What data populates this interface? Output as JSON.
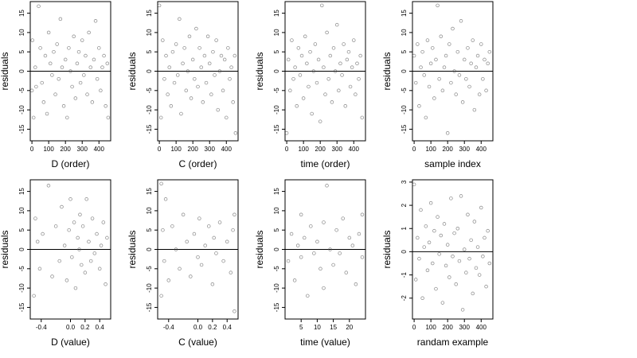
{
  "chart_data": [
    {
      "type": "scatter",
      "xlabel": "D (order)",
      "ylabel": "residuals",
      "xlim": [
        -10,
        470
      ],
      "ylim": [
        -18,
        18
      ],
      "xticks": [
        0,
        100,
        200,
        300,
        400
      ],
      "yticks": [
        -15,
        -10,
        -5,
        0,
        5,
        10,
        15
      ],
      "ref_line_y": 0,
      "points": [
        [
          0,
          -5
        ],
        [
          3,
          8
        ],
        [
          10,
          -12
        ],
        [
          20,
          1
        ],
        [
          25,
          -4
        ],
        [
          40,
          16.8
        ],
        [
          50,
          6
        ],
        [
          60,
          -3
        ],
        [
          70,
          -8
        ],
        [
          80,
          4
        ],
        [
          90,
          -11
        ],
        [
          100,
          10
        ],
        [
          110,
          2
        ],
        [
          120,
          -1
        ],
        [
          130,
          5
        ],
        [
          140,
          -6
        ],
        [
          150,
          7
        ],
        [
          160,
          -2
        ],
        [
          170,
          13.5
        ],
        [
          180,
          1
        ],
        [
          190,
          -9
        ],
        [
          200,
          3
        ],
        [
          210,
          -12
        ],
        [
          220,
          6
        ],
        [
          230,
          0
        ],
        [
          240,
          -4
        ],
        [
          250,
          9
        ],
        [
          260,
          -7
        ],
        [
          270,
          2
        ],
        [
          280,
          5
        ],
        [
          290,
          -3
        ],
        [
          300,
          8
        ],
        [
          310,
          -1
        ],
        [
          320,
          4
        ],
        [
          330,
          -6
        ],
        [
          340,
          10
        ],
        [
          350,
          1
        ],
        [
          360,
          -8
        ],
        [
          370,
          3
        ],
        [
          380,
          13
        ],
        [
          390,
          -2
        ],
        [
          400,
          6
        ],
        [
          410,
          -5
        ],
        [
          420,
          1
        ],
        [
          430,
          4
        ],
        [
          440,
          -9
        ],
        [
          450,
          2
        ],
        [
          455,
          -12
        ]
      ]
    },
    {
      "type": "scatter",
      "xlabel": "C (order)",
      "ylabel": "residuals",
      "xlim": [
        -10,
        470
      ],
      "ylim": [
        -18,
        18
      ],
      "xticks": [
        0,
        100,
        200,
        300,
        400
      ],
      "yticks": [
        -15,
        -10,
        -5,
        0,
        5,
        10,
        15
      ],
      "ref_line_y": 0,
      "points": [
        [
          0,
          17
        ],
        [
          10,
          -12
        ],
        [
          20,
          8
        ],
        [
          30,
          -2
        ],
        [
          40,
          4
        ],
        [
          50,
          -6
        ],
        [
          60,
          1
        ],
        [
          70,
          -9
        ],
        [
          80,
          5
        ],
        [
          90,
          -3
        ],
        [
          100,
          7
        ],
        [
          110,
          -1
        ],
        [
          120,
          13.5
        ],
        [
          130,
          -11
        ],
        [
          140,
          2
        ],
        [
          150,
          6
        ],
        [
          160,
          -5
        ],
        [
          170,
          0
        ],
        [
          180,
          9
        ],
        [
          190,
          -7
        ],
        [
          200,
          3
        ],
        [
          210,
          -2
        ],
        [
          220,
          11
        ],
        [
          230,
          -4
        ],
        [
          240,
          6
        ],
        [
          250,
          1
        ],
        [
          260,
          -8
        ],
        [
          270,
          4
        ],
        [
          280,
          -3
        ],
        [
          290,
          9
        ],
        [
          300,
          2
        ],
        [
          310,
          -6
        ],
        [
          320,
          5
        ],
        [
          330,
          -1
        ],
        [
          340,
          8
        ],
        [
          350,
          -10
        ],
        [
          360,
          0
        ],
        [
          370,
          4
        ],
        [
          380,
          -5
        ],
        [
          390,
          3
        ],
        [
          400,
          -12
        ],
        [
          410,
          6
        ],
        [
          420,
          -2
        ],
        [
          430,
          1
        ],
        [
          440,
          -8
        ],
        [
          450,
          4
        ],
        [
          455,
          -16
        ]
      ]
    },
    {
      "type": "scatter",
      "xlabel": "time (order)",
      "ylabel": "residuals",
      "xlim": [
        -10,
        470
      ],
      "ylim": [
        -18,
        18
      ],
      "xticks": [
        0,
        100,
        200,
        300,
        400
      ],
      "yticks": [
        -15,
        -10,
        -5,
        0,
        5,
        10,
        15
      ],
      "ref_line_y": 0,
      "points": [
        [
          0,
          -16
        ],
        [
          10,
          3
        ],
        [
          20,
          -5
        ],
        [
          30,
          8
        ],
        [
          40,
          -2
        ],
        [
          50,
          1
        ],
        [
          60,
          -9
        ],
        [
          70,
          6
        ],
        [
          80,
          -1
        ],
        [
          90,
          4
        ],
        [
          100,
          -7
        ],
        [
          110,
          9
        ],
        [
          120,
          2
        ],
        [
          130,
          -4
        ],
        [
          140,
          5
        ],
        [
          150,
          -11
        ],
        [
          160,
          0
        ],
        [
          170,
          7
        ],
        [
          180,
          -3
        ],
        [
          190,
          3
        ],
        [
          200,
          -13
        ],
        [
          210,
          17
        ],
        [
          220,
          1
        ],
        [
          230,
          -6
        ],
        [
          240,
          10
        ],
        [
          250,
          -2
        ],
        [
          260,
          4
        ],
        [
          270,
          -8
        ],
        [
          280,
          6
        ],
        [
          290,
          0
        ],
        [
          300,
          12
        ],
        [
          310,
          -5
        ],
        [
          320,
          2
        ],
        [
          330,
          -1
        ],
        [
          340,
          7
        ],
        [
          350,
          -9
        ],
        [
          360,
          3
        ],
        [
          370,
          5
        ],
        [
          380,
          -4
        ],
        [
          390,
          1
        ],
        [
          400,
          8
        ],
        [
          410,
          -6
        ],
        [
          420,
          2
        ],
        [
          430,
          -2
        ],
        [
          440,
          4
        ],
        [
          450,
          -12
        ]
      ]
    },
    {
      "type": "scatter",
      "xlabel": "sample index",
      "ylabel": "residuals",
      "xlim": [
        -10,
        470
      ],
      "ylim": [
        -18,
        18
      ],
      "xticks": [
        0,
        100,
        200,
        300,
        400
      ],
      "yticks": [
        -15,
        -10,
        -5,
        0,
        5,
        10,
        15
      ],
      "ref_line_y": 0,
      "points": [
        [
          0,
          4
        ],
        [
          10,
          -3
        ],
        [
          20,
          7
        ],
        [
          30,
          -9
        ],
        [
          40,
          1
        ],
        [
          50,
          5
        ],
        [
          60,
          -1
        ],
        [
          70,
          -12
        ],
        [
          80,
          8
        ],
        [
          90,
          -4
        ],
        [
          100,
          2
        ],
        [
          110,
          6
        ],
        [
          120,
          -7
        ],
        [
          130,
          3
        ],
        [
          140,
          17
        ],
        [
          150,
          -2
        ],
        [
          160,
          9
        ],
        [
          170,
          -5
        ],
        [
          180,
          1
        ],
        [
          190,
          4
        ],
        [
          200,
          -16
        ],
        [
          210,
          7
        ],
        [
          220,
          -3
        ],
        [
          230,
          11
        ],
        [
          240,
          0
        ],
        [
          250,
          -6
        ],
        [
          260,
          5
        ],
        [
          270,
          -1
        ],
        [
          280,
          13
        ],
        [
          290,
          -8
        ],
        [
          300,
          3
        ],
        [
          310,
          -2
        ],
        [
          320,
          6
        ],
        [
          330,
          -4
        ],
        [
          340,
          2
        ],
        [
          350,
          8
        ],
        [
          360,
          -10
        ],
        [
          370,
          1
        ],
        [
          380,
          4
        ],
        [
          390,
          -6
        ],
        [
          400,
          7
        ],
        [
          410,
          -2
        ],
        [
          420,
          3
        ],
        [
          430,
          -5
        ],
        [
          440,
          2
        ],
        [
          450,
          5
        ]
      ]
    },
    {
      "type": "scatter",
      "xlabel": "D (value)",
      "ylabel": "residuals",
      "xlim": [
        -0.55,
        0.55
      ],
      "ylim": [
        -18,
        18
      ],
      "xticks": [
        -0.4,
        0.0,
        0.2,
        0.4
      ],
      "xticklabels": [
        "-0.4",
        "0.0",
        "0.2",
        "0.4"
      ],
      "yticks": [
        -15,
        -10,
        -5,
        0,
        5,
        10,
        15
      ],
      "ref_line_y": 0,
      "points": [
        [
          -0.5,
          -12
        ],
        [
          -0.48,
          8
        ],
        [
          -0.45,
          2
        ],
        [
          -0.42,
          -5
        ],
        [
          -0.38,
          4
        ],
        [
          -0.3,
          16.5
        ],
        [
          -0.25,
          -7
        ],
        [
          -0.2,
          6
        ],
        [
          -0.15,
          -3
        ],
        [
          -0.12,
          11
        ],
        [
          -0.08,
          1
        ],
        [
          -0.05,
          -8
        ],
        [
          -0.02,
          5
        ],
        [
          0.0,
          13
        ],
        [
          0.02,
          -2
        ],
        [
          0.05,
          7
        ],
        [
          0.07,
          -10
        ],
        [
          0.1,
          3
        ],
        [
          0.12,
          0
        ],
        [
          0.13,
          9
        ],
        [
          0.15,
          -4
        ],
        [
          0.17,
          6
        ],
        [
          0.2,
          -6
        ],
        [
          0.22,
          13
        ],
        [
          0.25,
          2
        ],
        [
          0.28,
          -3
        ],
        [
          0.3,
          8
        ],
        [
          0.33,
          -1
        ],
        [
          0.36,
          4
        ],
        [
          0.4,
          -5
        ],
        [
          0.42,
          1
        ],
        [
          0.45,
          7
        ],
        [
          0.48,
          -9
        ],
        [
          0.5,
          3
        ]
      ]
    },
    {
      "type": "scatter",
      "xlabel": "C (value)",
      "ylabel": "residuals",
      "xlim": [
        -0.55,
        0.55
      ],
      "ylim": [
        -18,
        18
      ],
      "xticks": [
        -0.4,
        0.0,
        0.2,
        0.4
      ],
      "xticklabels": [
        "-0.4",
        "0.0",
        "0.2",
        "0.4"
      ],
      "yticks": [
        -15,
        -10,
        -5,
        0,
        5,
        10,
        15
      ],
      "ref_line_y": 0,
      "points": [
        [
          -0.5,
          17
        ],
        [
          -0.5,
          -12
        ],
        [
          -0.48,
          5
        ],
        [
          -0.46,
          -3
        ],
        [
          -0.44,
          13
        ],
        [
          -0.4,
          -8
        ],
        [
          -0.35,
          6
        ],
        [
          -0.3,
          0
        ],
        [
          -0.25,
          -5
        ],
        [
          -0.2,
          9
        ],
        [
          -0.15,
          2
        ],
        [
          -0.1,
          -7
        ],
        [
          -0.05,
          4
        ],
        [
          0.0,
          -2
        ],
        [
          0.02,
          8
        ],
        [
          0.05,
          -4
        ],
        [
          0.1,
          1
        ],
        [
          0.15,
          6
        ],
        [
          0.2,
          -9
        ],
        [
          0.22,
          3
        ],
        [
          0.25,
          -1
        ],
        [
          0.3,
          7
        ],
        [
          0.35,
          -3
        ],
        [
          0.4,
          2
        ],
        [
          0.45,
          -6
        ],
        [
          0.48,
          5
        ],
        [
          0.5,
          -16
        ],
        [
          0.5,
          9
        ]
      ]
    },
    {
      "type": "scatter",
      "xlabel": "time (value)",
      "ylabel": "residuals",
      "xlim": [
        0,
        25
      ],
      "ylim": [
        -18,
        18
      ],
      "xticks": [
        5,
        10,
        15,
        20
      ],
      "yticks": [
        -15,
        -10,
        -5,
        0,
        5,
        10,
        15
      ],
      "ref_line_y": 0,
      "points": [
        [
          1,
          -3
        ],
        [
          2,
          4
        ],
        [
          3,
          -8
        ],
        [
          4,
          1
        ],
        [
          5,
          9
        ],
        [
          5,
          -2
        ],
        [
          6,
          3
        ],
        [
          7,
          -12
        ],
        [
          8,
          6
        ],
        [
          9,
          -1
        ],
        [
          10,
          2
        ],
        [
          11,
          -5
        ],
        [
          12,
          7
        ],
        [
          12,
          -10
        ],
        [
          13,
          16.5
        ],
        [
          14,
          0
        ],
        [
          15,
          -4
        ],
        [
          16,
          5
        ],
        [
          17,
          -1
        ],
        [
          18,
          8
        ],
        [
          19,
          -6
        ],
        [
          20,
          3
        ],
        [
          21,
          1
        ],
        [
          22,
          -9
        ],
        [
          23,
          4
        ],
        [
          24,
          -2
        ],
        [
          24,
          9
        ]
      ]
    },
    {
      "type": "scatter",
      "xlabel": "randam example",
      "ylabel": "residuals",
      "xlim": [
        -10,
        470
      ],
      "ylim": [
        -2.9,
        3.1
      ],
      "xticks": [
        0,
        100,
        200,
        300,
        400
      ],
      "yticks": [
        -2,
        -1,
        0,
        1,
        2,
        3
      ],
      "ref_line_y": 0,
      "points": [
        [
          0,
          2.9
        ],
        [
          10,
          -1.2
        ],
        [
          20,
          0.6
        ],
        [
          30,
          -0.3
        ],
        [
          40,
          1.8
        ],
        [
          50,
          -2.0
        ],
        [
          60,
          0.2
        ],
        [
          70,
          1.1
        ],
        [
          80,
          -0.8
        ],
        [
          90,
          0.4
        ],
        [
          100,
          2.1
        ],
        [
          110,
          -0.5
        ],
        [
          120,
          0.9
        ],
        [
          130,
          -1.6
        ],
        [
          140,
          1.5
        ],
        [
          150,
          -0.1
        ],
        [
          160,
          0.7
        ],
        [
          170,
          -2.2
        ],
        [
          180,
          1.2
        ],
        [
          190,
          -0.6
        ],
        [
          200,
          0.3
        ],
        [
          210,
          -1.1
        ],
        [
          220,
          2.3
        ],
        [
          230,
          -0.2
        ],
        [
          240,
          0.8
        ],
        [
          250,
          -1.4
        ],
        [
          260,
          1.0
        ],
        [
          270,
          -0.4
        ],
        [
          280,
          2.4
        ],
        [
          290,
          -2.5
        ],
        [
          300,
          0.1
        ],
        [
          310,
          -0.9
        ],
        [
          320,
          1.6
        ],
        [
          330,
          -0.3
        ],
        [
          340,
          0.5
        ],
        [
          350,
          -1.8
        ],
        [
          360,
          1.3
        ],
        [
          370,
          -0.7
        ],
        [
          380,
          0.2
        ],
        [
          390,
          -1.0
        ],
        [
          400,
          1.9
        ],
        [
          410,
          -0.2
        ],
        [
          420,
          0.6
        ],
        [
          430,
          -1.5
        ],
        [
          440,
          0.9
        ],
        [
          450,
          -0.5
        ]
      ]
    }
  ]
}
